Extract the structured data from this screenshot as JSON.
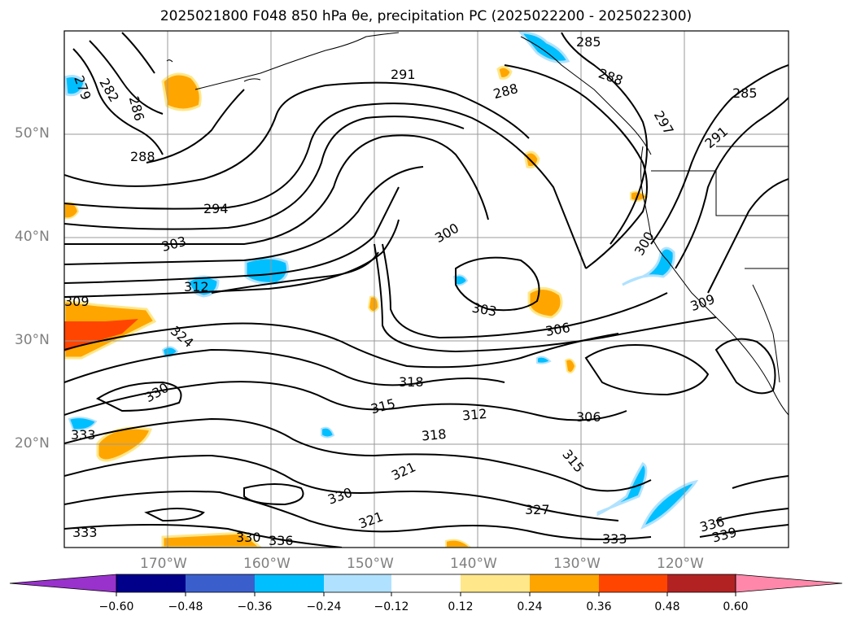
{
  "title": "2025021800 F048 850 hPa θe, precipitation PC (2025022200 - 2025022300)",
  "lat_labels": [
    "50°N",
    "40°N",
    "30°N",
    "20°N"
  ],
  "lon_labels": [
    "170°W",
    "160°W",
    "150°W",
    "140°W",
    "130°W",
    "120°W"
  ],
  "colorbar": {
    "ticks": [
      "−0.60",
      "−0.48",
      "−0.36",
      "−0.24",
      "−0.12",
      "0.12",
      "0.24",
      "0.36",
      "0.48",
      "0.60"
    ],
    "colors": [
      "#9932cc",
      "#00008b",
      "#3a5fcd",
      "#00bfff",
      "#b0e2ff",
      "#ffffff",
      "#ffe78a",
      "#ffa500",
      "#ff4500",
      "#b22222",
      "#ff88aa"
    ]
  },
  "contour_labels": [
    "279",
    "282",
    "286",
    "288",
    "285",
    "291",
    "288",
    "285",
    "288",
    "291",
    "297",
    "294",
    "303",
    "300",
    "300",
    "312",
    "303",
    "306",
    "309",
    "309",
    "324",
    "330",
    "318",
    "315",
    "312",
    "306",
    "318",
    "333",
    "333",
    "315",
    "321",
    "327",
    "330",
    "321",
    "333",
    "330",
    "336",
    "336",
    "339"
  ]
}
